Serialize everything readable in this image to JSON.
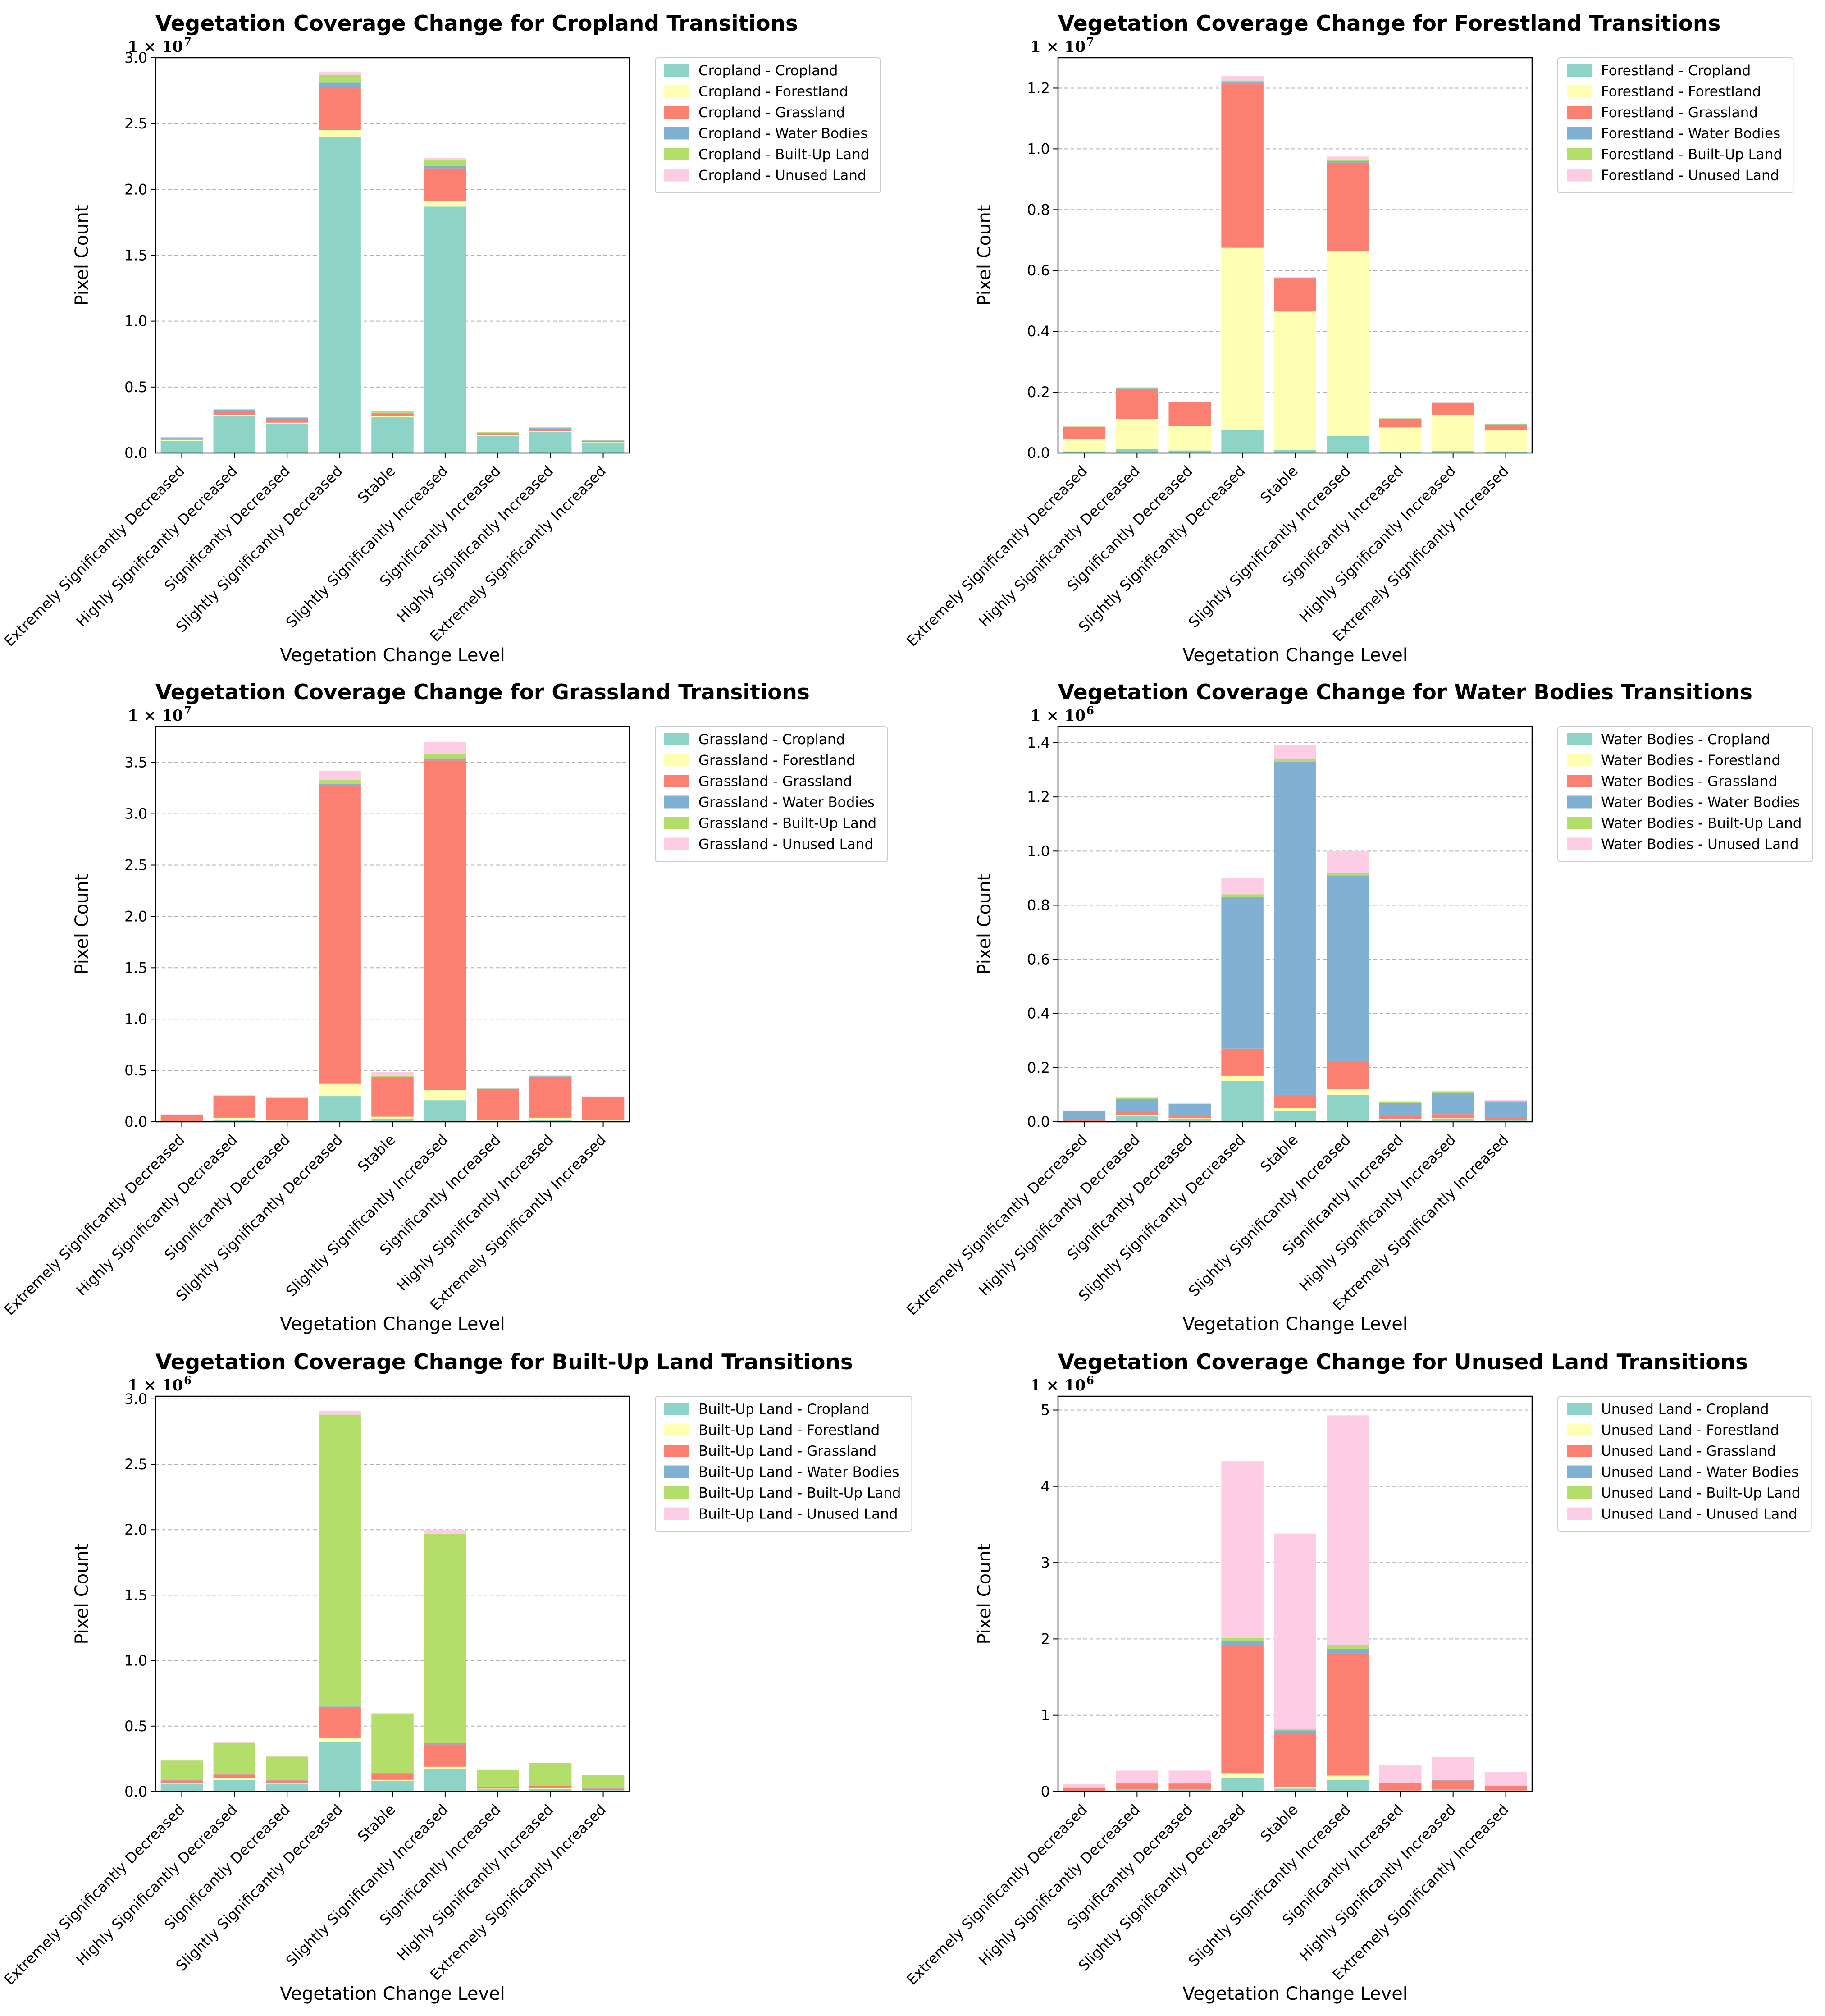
{
  "colors": {
    "Cropland": "#8dd3c7",
    "Forestland": "#ffffb3",
    "Grassland": "#fb8072",
    "Water Bodies": "#80b1d3",
    "Built-Up Land": "#b3de69",
    "Unused Land": "#fccde5"
  },
  "chart_data": [
    {
      "type": "bar",
      "stacked": true,
      "title": "Vegetation Coverage Change for Cropland Transitions",
      "xlabel": "Vegetation Change Level",
      "ylabel": "Pixel Count",
      "offset_base": "1 × 10",
      "offset_exp": "7",
      "ylim": [
        0,
        3.0
      ],
      "yticks": [
        "0.0",
        "0.5",
        "1.0",
        "1.5",
        "2.0",
        "2.5",
        "3.0"
      ],
      "grid": "y-dashed",
      "legend": "outside-right",
      "categories": [
        "Extremely Significantly Decreased",
        "Highly Significantly Decreased",
        "Significantly Decreased",
        "Slightly Significantly Decreased",
        "Stable",
        "Slightly Significantly Increased",
        "Significantly Increased",
        "Highly Significantly Increased",
        "Extremely Significantly Increased"
      ],
      "series": [
        {
          "name": "Cropland - Cropland",
          "values": [
            0.09,
            0.28,
            0.22,
            2.4,
            0.27,
            1.87,
            0.13,
            0.16,
            0.08
          ]
        },
        {
          "name": "Cropland - Forestland",
          "values": [
            0.01,
            0.01,
            0.01,
            0.05,
            0.01,
            0.04,
            0.005,
            0.005,
            0.003
          ]
        },
        {
          "name": "Cropland - Grassland",
          "values": [
            0.01,
            0.03,
            0.03,
            0.33,
            0.02,
            0.25,
            0.015,
            0.02,
            0.01
          ]
        },
        {
          "name": "Cropland - Water Bodies",
          "values": [
            0.003,
            0.005,
            0.005,
            0.03,
            0.005,
            0.02,
            0.002,
            0.003,
            0.002
          ]
        },
        {
          "name": "Cropland - Built-Up Land",
          "values": [
            0.005,
            0.005,
            0.005,
            0.06,
            0.01,
            0.04,
            0.005,
            0.005,
            0.003
          ]
        },
        {
          "name": "Cropland - Unused Land",
          "values": [
            0.002,
            0.003,
            0.003,
            0.02,
            0.003,
            0.02,
            0.002,
            0.002,
            0.001
          ]
        }
      ]
    },
    {
      "type": "bar",
      "stacked": true,
      "title": "Vegetation Coverage Change for Forestland Transitions",
      "xlabel": "Vegetation Change Level",
      "ylabel": "Pixel Count",
      "offset_base": "1 × 10",
      "offset_exp": "7",
      "ylim": [
        0,
        1.3
      ],
      "yticks": [
        "0.0",
        "0.2",
        "0.4",
        "0.6",
        "0.8",
        "1.0",
        "1.2"
      ],
      "grid": "y-dashed",
      "legend": "outside-right",
      "categories": [
        "Extremely Significantly Decreased",
        "Highly Significantly Decreased",
        "Significantly Decreased",
        "Slightly Significantly Decreased",
        "Stable",
        "Slightly Significantly Increased",
        "Significantly Increased",
        "Highly Significantly Increased",
        "Extremely Significantly Increased"
      ],
      "series": [
        {
          "name": "Forestland - Cropland",
          "values": [
            0.005,
            0.012,
            0.008,
            0.075,
            0.01,
            0.055,
            0.004,
            0.006,
            0.004
          ]
        },
        {
          "name": "Forestland - Forestland",
          "values": [
            0.04,
            0.1,
            0.08,
            0.6,
            0.455,
            0.61,
            0.08,
            0.12,
            0.07
          ]
        },
        {
          "name": "Forestland - Grassland",
          "values": [
            0.04,
            0.1,
            0.078,
            0.54,
            0.11,
            0.29,
            0.028,
            0.037,
            0.019
          ]
        },
        {
          "name": "Forestland - Water Bodies",
          "values": [
            0.001,
            0.001,
            0.001,
            0.005,
            0.001,
            0.005,
            0.001,
            0.001,
            0.001
          ]
        },
        {
          "name": "Forestland - Built-Up Land",
          "values": [
            0.001,
            0.002,
            0.001,
            0.005,
            0.001,
            0.005,
            0.001,
            0.001,
            0.001
          ]
        },
        {
          "name": "Forestland - Unused Land",
          "values": [
            0.001,
            0.001,
            0.001,
            0.015,
            0.001,
            0.01,
            0.001,
            0.001,
            0.001
          ]
        }
      ]
    },
    {
      "type": "bar",
      "stacked": true,
      "title": "Vegetation Coverage Change for Grassland Transitions",
      "xlabel": "Vegetation Change Level",
      "ylabel": "Pixel Count",
      "offset_base": "1 × 10",
      "offset_exp": "7",
      "ylim": [
        0,
        3.85
      ],
      "yticks": [
        "0.0",
        "0.5",
        "1.0",
        "1.5",
        "2.0",
        "2.5",
        "3.0",
        "3.5"
      ],
      "grid": "y-dashed",
      "legend": "outside-right",
      "categories": [
        "Extremely Significantly Decreased",
        "Highly Significantly Decreased",
        "Significantly Decreased",
        "Slightly Significantly Decreased",
        "Stable",
        "Slightly Significantly Increased",
        "Significantly Increased",
        "Highly Significantly Increased",
        "Extremely Significantly Increased"
      ],
      "series": [
        {
          "name": "Grassland - Cropland",
          "values": [
            0.005,
            0.02,
            0.01,
            0.25,
            0.03,
            0.21,
            0.01,
            0.02,
            0.01
          ]
        },
        {
          "name": "Grassland - Forestland",
          "values": [
            0.003,
            0.02,
            0.01,
            0.12,
            0.02,
            0.1,
            0.01,
            0.02,
            0.01
          ]
        },
        {
          "name": "Grassland - Grassland",
          "values": [
            0.06,
            0.21,
            0.21,
            2.9,
            0.38,
            3.21,
            0.3,
            0.4,
            0.22
          ]
        },
        {
          "name": "Grassland - Water Bodies",
          "values": [
            0.001,
            0.002,
            0.002,
            0.02,
            0.005,
            0.02,
            0.002,
            0.003,
            0.002
          ]
        },
        {
          "name": "Grassland - Built-Up Land",
          "values": [
            0.001,
            0.002,
            0.002,
            0.04,
            0.01,
            0.04,
            0.002,
            0.003,
            0.002
          ]
        },
        {
          "name": "Grassland - Unused Land",
          "values": [
            0.002,
            0.005,
            0.005,
            0.09,
            0.04,
            0.12,
            0.003,
            0.005,
            0.003
          ]
        }
      ]
    },
    {
      "type": "bar",
      "stacked": true,
      "title": "Vegetation Coverage Change for Water Bodies Transitions",
      "xlabel": "Vegetation Change Level",
      "ylabel": "Pixel Count",
      "offset_base": "1 × 10",
      "offset_exp": "6",
      "ylim": [
        0,
        1.46
      ],
      "yticks": [
        "0.0",
        "0.2",
        "0.4",
        "0.6",
        "0.8",
        "1.0",
        "1.2",
        "1.4"
      ],
      "grid": "y-dashed",
      "legend": "outside-right",
      "categories": [
        "Extremely Significantly Decreased",
        "Highly Significantly Decreased",
        "Significantly Decreased",
        "Slightly Significantly Decreased",
        "Stable",
        "Slightly Significantly Increased",
        "Significantly Increased",
        "Highly Significantly Increased",
        "Extremely Significantly Increased"
      ],
      "series": [
        {
          "name": "Water Bodies - Cropland",
          "values": [
            0.002,
            0.02,
            0.01,
            0.15,
            0.04,
            0.1,
            0.008,
            0.01,
            0.005
          ]
        },
        {
          "name": "Water Bodies - Forestland",
          "values": [
            0.001,
            0.005,
            0.003,
            0.02,
            0.01,
            0.02,
            0.002,
            0.003,
            0.002
          ]
        },
        {
          "name": "Water Bodies - Grassland",
          "values": [
            0.002,
            0.01,
            0.007,
            0.1,
            0.05,
            0.1,
            0.01,
            0.015,
            0.008
          ]
        },
        {
          "name": "Water Bodies - Water Bodies",
          "values": [
            0.035,
            0.05,
            0.045,
            0.56,
            1.23,
            0.69,
            0.05,
            0.08,
            0.06
          ]
        },
        {
          "name": "Water Bodies - Built-Up Land",
          "values": [
            0.001,
            0.002,
            0.002,
            0.01,
            0.01,
            0.01,
            0.002,
            0.003,
            0.002
          ]
        },
        {
          "name": "Water Bodies - Unused Land",
          "values": [
            0.001,
            0.003,
            0.003,
            0.06,
            0.05,
            0.08,
            0.004,
            0.004,
            0.003
          ]
        }
      ]
    },
    {
      "type": "bar",
      "stacked": true,
      "title": "Vegetation Coverage Change for Built-Up Land Transitions",
      "xlabel": "Vegetation Change Level",
      "ylabel": "Pixel Count",
      "offset_base": "1 × 10",
      "offset_exp": "6",
      "ylim": [
        0,
        3.02
      ],
      "yticks": [
        "0.0",
        "0.5",
        "1.0",
        "1.5",
        "2.0",
        "2.5",
        "3.0"
      ],
      "grid": "y-dashed",
      "legend": "outside-right",
      "categories": [
        "Extremely Significantly Decreased",
        "Highly Significantly Decreased",
        "Significantly Decreased",
        "Slightly Significantly Decreased",
        "Stable",
        "Slightly Significantly Increased",
        "Significantly Increased",
        "Highly Significantly Increased",
        "Extremely Significantly Increased"
      ],
      "series": [
        {
          "name": "Built-Up Land - Cropland",
          "values": [
            0.06,
            0.09,
            0.06,
            0.38,
            0.08,
            0.17,
            0.02,
            0.02,
            0.01
          ]
        },
        {
          "name": "Built-Up Land - Forestland",
          "values": [
            0.005,
            0.01,
            0.005,
            0.03,
            0.01,
            0.02,
            0.003,
            0.005,
            0.003
          ]
        },
        {
          "name": "Built-Up Land - Grassland",
          "values": [
            0.02,
            0.03,
            0.02,
            0.23,
            0.05,
            0.17,
            0.01,
            0.02,
            0.01
          ]
        },
        {
          "name": "Built-Up Land - Water Bodies",
          "values": [
            0.002,
            0.003,
            0.002,
            0.01,
            0.003,
            0.01,
            0.001,
            0.002,
            0.001
          ]
        },
        {
          "name": "Built-Up Land - Built-Up Land",
          "values": [
            0.15,
            0.24,
            0.18,
            2.23,
            0.45,
            1.6,
            0.13,
            0.17,
            0.1
          ]
        },
        {
          "name": "Built-Up Land - Unused Land",
          "values": [
            0.003,
            0.005,
            0.003,
            0.03,
            0.005,
            0.03,
            0.002,
            0.003,
            0.002
          ]
        }
      ]
    },
    {
      "type": "bar",
      "stacked": true,
      "title": "Vegetation Coverage Change for Unused Land Transitions",
      "xlabel": "Vegetation Change Level",
      "ylabel": "Pixel Count",
      "offset_base": "1 × 10",
      "offset_exp": "6",
      "ylim": [
        0,
        5.18
      ],
      "yticks": [
        "0",
        "1",
        "2",
        "3",
        "4",
        "5"
      ],
      "grid": "y-dashed",
      "legend": "outside-right",
      "categories": [
        "Extremely Significantly Decreased",
        "Highly Significantly Decreased",
        "Significantly Decreased",
        "Slightly Significantly Decreased",
        "Stable",
        "Slightly Significantly Increased",
        "Significantly Increased",
        "Highly Significantly Increased",
        "Extremely Significantly Increased"
      ],
      "series": [
        {
          "name": "Unused Land - Cropland",
          "values": [
            0.005,
            0.02,
            0.02,
            0.18,
            0.04,
            0.15,
            0.01,
            0.02,
            0.01
          ]
        },
        {
          "name": "Unused Land - Forestland",
          "values": [
            0.002,
            0.005,
            0.005,
            0.06,
            0.02,
            0.06,
            0.003,
            0.005,
            0.003
          ]
        },
        {
          "name": "Unused Land - Grassland",
          "values": [
            0.04,
            0.08,
            0.08,
            1.67,
            0.69,
            1.6,
            0.1,
            0.12,
            0.06
          ]
        },
        {
          "name": "Unused Land - Water Bodies",
          "values": [
            0.002,
            0.005,
            0.005,
            0.06,
            0.05,
            0.06,
            0.003,
            0.005,
            0.003
          ]
        },
        {
          "name": "Unused Land - Built-Up Land",
          "values": [
            0.002,
            0.005,
            0.005,
            0.04,
            0.02,
            0.05,
            0.003,
            0.005,
            0.003
          ]
        },
        {
          "name": "Unused Land - Unused Land",
          "values": [
            0.05,
            0.16,
            0.16,
            2.32,
            2.56,
            3.01,
            0.23,
            0.3,
            0.18
          ]
        }
      ]
    }
  ]
}
